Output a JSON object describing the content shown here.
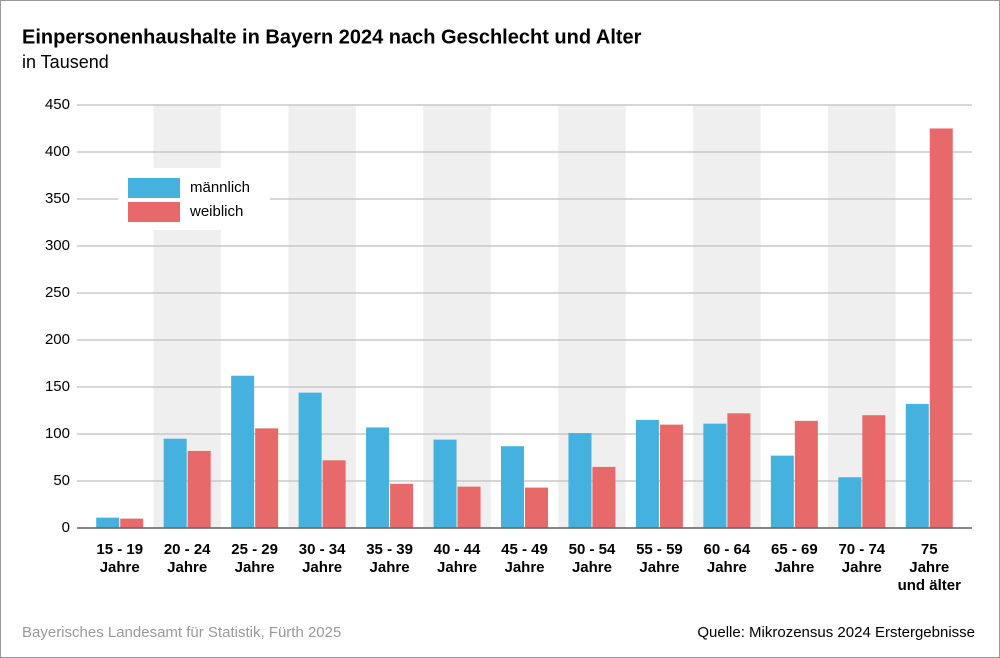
{
  "chart_data": {
    "type": "bar",
    "title": "Einpersonenhaushalte in Bayern 2024 nach Geschlecht und Alter",
    "subtitle": "in Tausend",
    "categories": [
      [
        "15 - 19",
        "Jahre"
      ],
      [
        "20 - 24",
        "Jahre"
      ],
      [
        "25 - 29",
        "Jahre"
      ],
      [
        "30 - 34",
        "Jahre"
      ],
      [
        "35 - 39",
        "Jahre"
      ],
      [
        "40 - 44",
        "Jahre"
      ],
      [
        "45 - 49",
        "Jahre"
      ],
      [
        "50 - 54",
        "Jahre"
      ],
      [
        "55 - 59",
        "Jahre"
      ],
      [
        "60 - 64",
        "Jahre"
      ],
      [
        "65 - 69",
        "Jahre"
      ],
      [
        "70 - 74",
        "Jahre"
      ],
      [
        "75",
        "Jahre",
        "und älter"
      ]
    ],
    "series": [
      {
        "name": "männlich",
        "color": "#45b1de",
        "values": [
          11,
          95,
          162,
          144,
          107,
          94,
          87,
          101,
          115,
          111,
          77,
          54,
          132
        ]
      },
      {
        "name": "weiblich",
        "color": "#e8696a",
        "values": [
          10,
          82,
          106,
          72,
          47,
          44,
          43,
          65,
          110,
          122,
          114,
          120,
          425
        ]
      }
    ],
    "ylim": [
      0,
      450
    ],
    "yticks": [
      0,
      50,
      100,
      150,
      200,
      250,
      300,
      350,
      400,
      450
    ],
    "grid": true,
    "alternating_bands": true,
    "legend": "upper left",
    "credit": "Bayerisches Landesamt für Statistik, Fürth 2025",
    "source": "Quelle: Mikrozensus 2024 Erstergebnisse"
  }
}
